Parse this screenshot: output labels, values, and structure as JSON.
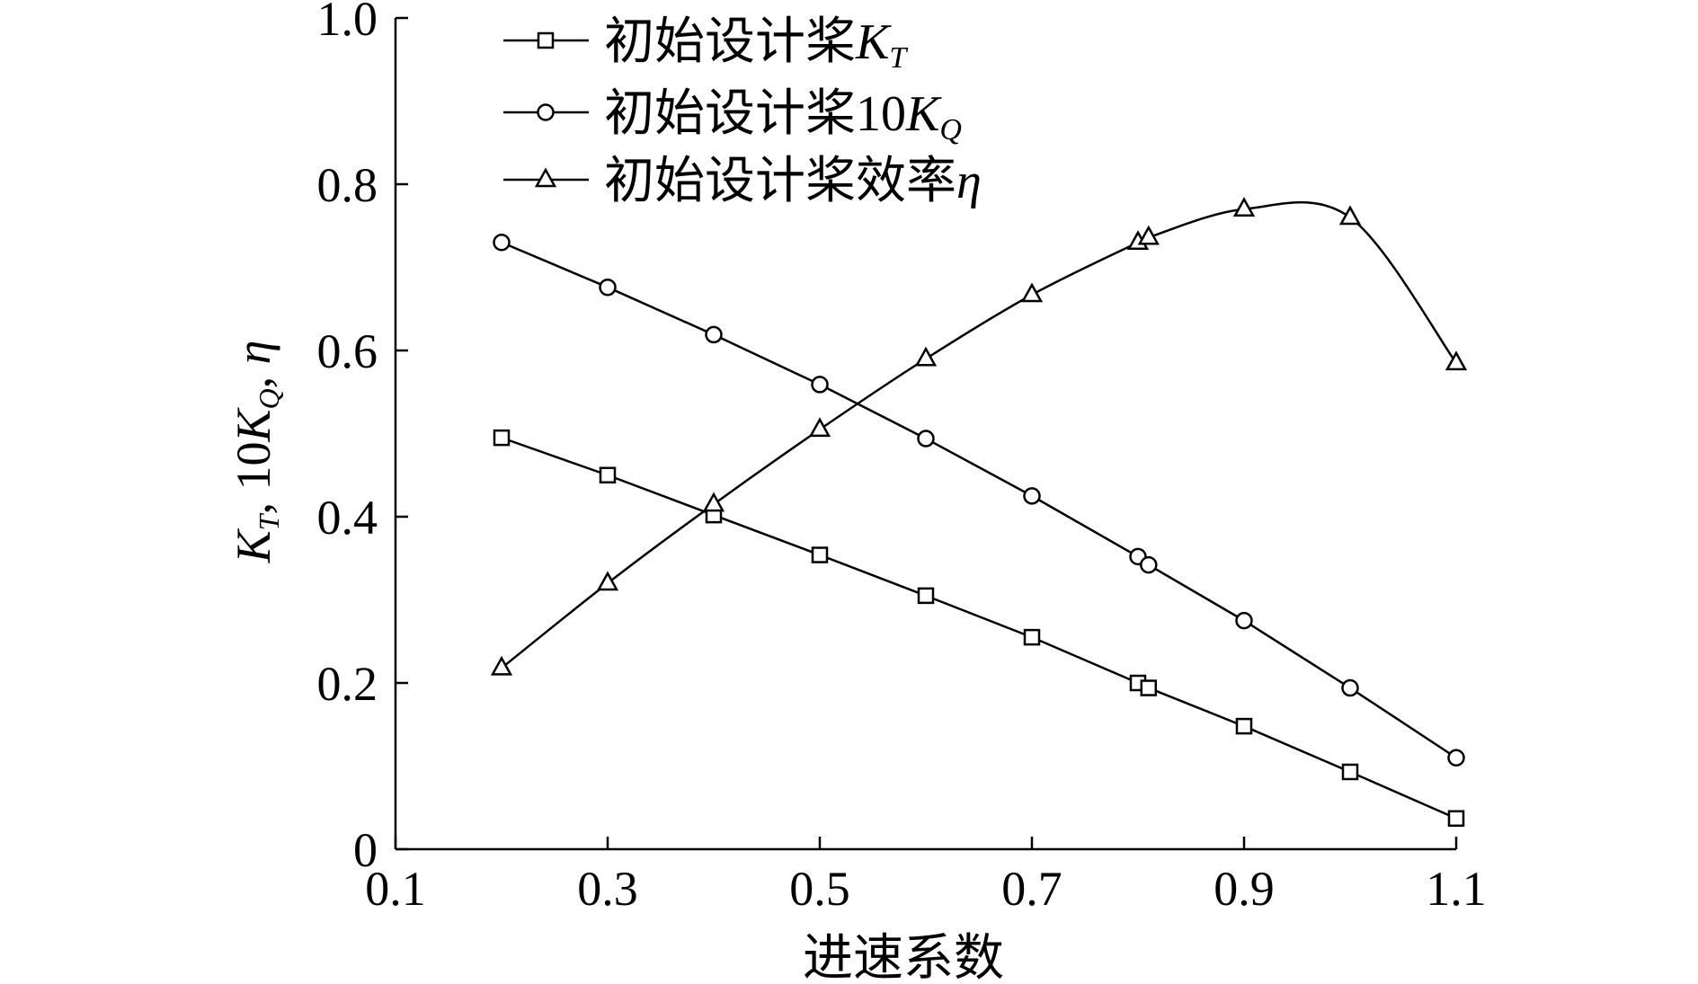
{
  "chart_data": {
    "type": "line",
    "title": "",
    "xlabel": "进速系数",
    "ylabel": {
      "parts": [
        {
          "t": "K",
          "italic": true
        },
        {
          "t": "T",
          "italic": true,
          "sub": true
        },
        {
          "t": ", 10"
        },
        {
          "t": "K",
          "italic": true
        },
        {
          "t": "Q",
          "italic": true,
          "sub": true
        },
        {
          "t": ", "
        },
        {
          "t": "η",
          "italic": true
        }
      ]
    },
    "xlim": [
      0.1,
      1.1
    ],
    "ylim": [
      0,
      1.0
    ],
    "xticks": [
      0.1,
      0.3,
      0.5,
      0.7,
      0.9,
      1.1
    ],
    "xtick_labels": [
      "0.1",
      "0.3",
      "0.5",
      "0.7",
      "0.9",
      "1.1"
    ],
    "yticks": [
      0,
      0.2,
      0.4,
      0.6,
      0.8,
      1.0
    ],
    "ytick_labels": [
      "0",
      "0.2",
      "0.4",
      "0.6",
      "0.8",
      "1.0"
    ],
    "grid": false,
    "legend_position": "top-center",
    "series": [
      {
        "name": "初始设计桨KT",
        "legend_parts": [
          {
            "t": "初始设计桨"
          },
          {
            "t": "K",
            "italic": true
          },
          {
            "t": "T",
            "italic": true,
            "sub": true
          }
        ],
        "marker": "square",
        "smooth": false,
        "x": [
          0.2,
          0.3,
          0.4,
          0.5,
          0.6,
          0.7,
          0.8,
          0.81,
          0.9,
          1.0,
          1.1
        ],
        "y": [
          0.495,
          0.45,
          0.402,
          0.354,
          0.305,
          0.255,
          0.2,
          0.194,
          0.148,
          0.093,
          0.037
        ]
      },
      {
        "name": "初始设计桨10KQ",
        "legend_parts": [
          {
            "t": "初始设计桨10"
          },
          {
            "t": "K",
            "italic": true
          },
          {
            "t": "Q",
            "italic": true,
            "sub": true
          }
        ],
        "marker": "circle",
        "smooth": false,
        "x": [
          0.2,
          0.3,
          0.4,
          0.5,
          0.6,
          0.7,
          0.8,
          0.81,
          0.9,
          1.0,
          1.1
        ],
        "y": [
          0.73,
          0.676,
          0.619,
          0.559,
          0.494,
          0.425,
          0.352,
          0.342,
          0.275,
          0.194,
          0.11
        ]
      },
      {
        "name": "初始设计桨效率η",
        "legend_parts": [
          {
            "t": "初始设计桨效率"
          },
          {
            "t": "η",
            "italic": true
          }
        ],
        "marker": "triangle",
        "smooth": true,
        "x": [
          0.2,
          0.3,
          0.4,
          0.5,
          0.6,
          0.7,
          0.8,
          0.81,
          0.9,
          1.0,
          1.1
        ],
        "y": [
          0.218,
          0.32,
          0.415,
          0.505,
          0.59,
          0.667,
          0.73,
          0.736,
          0.77,
          0.76,
          0.585
        ]
      }
    ]
  }
}
